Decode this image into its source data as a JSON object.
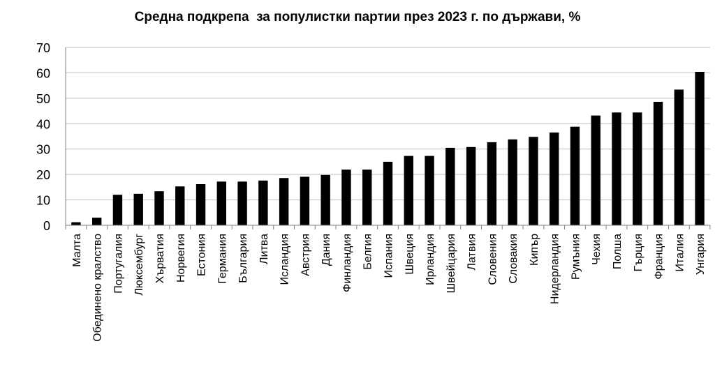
{
  "chart_data": {
    "type": "bar",
    "title": "Средна подкрепа  за популистки партии през 2023 г. по държави, %",
    "xlabel": "",
    "ylabel": "",
    "ylim": [
      0,
      70
    ],
    "yticks": [
      0,
      10,
      20,
      30,
      40,
      50,
      60,
      70
    ],
    "grid": true,
    "legend": "none",
    "bar_color": "#000000",
    "categories": [
      "Малта",
      "Обединено кралство",
      "Португалия",
      "Люксембург",
      "Хърватия",
      "Норвегия",
      "Естония",
      "Германия",
      "България",
      "Литва",
      "Исландия",
      "Австрия",
      "Дания",
      "Финландия",
      "Белгия",
      "Испания",
      "Швеция",
      "Ирландия",
      "Швейцария",
      "Латвия",
      "Словения",
      "Словакия",
      "Кипър",
      "Нидерландия",
      "Румъния",
      "Чехия",
      "Полша",
      "Гърция",
      "Франция",
      "Италия",
      "Унгария"
    ],
    "values": [
      1.2,
      3,
      12,
      12.4,
      13.4,
      15.3,
      16.2,
      17.2,
      17.2,
      17.6,
      18.6,
      19.1,
      19.8,
      21.9,
      21.9,
      25,
      27.3,
      27.3,
      30.5,
      30.8,
      32.7,
      33.8,
      34.8,
      36.5,
      38.8,
      43.2,
      44.4,
      44.4,
      48.6,
      53.4,
      60.4
    ]
  }
}
